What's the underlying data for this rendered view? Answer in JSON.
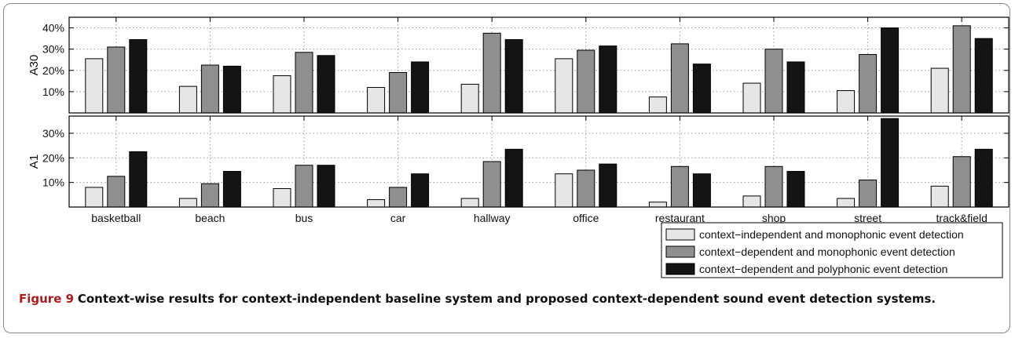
{
  "chart_data": [
    {
      "type": "bar",
      "ylabel": "A30",
      "ylim": [
        0,
        45
      ],
      "yticks": [
        10,
        20,
        30,
        40
      ],
      "ytick_labels": [
        "10%",
        "20%",
        "30%",
        "40%"
      ],
      "grid": true,
      "categories": [
        "basketball",
        "beach",
        "bus",
        "car",
        "hallway",
        "office",
        "restaurant",
        "shop",
        "street",
        "track&field"
      ],
      "series": [
        {
          "name": "context−independent and monophonic event detection",
          "color": "#e6e6e6",
          "values": [
            25.5,
            12.5,
            17.5,
            12,
            13.5,
            25.5,
            7.5,
            14,
            10.5,
            21
          ]
        },
        {
          "name": "context−dependent and monophonic event detection",
          "color": "#8f8f8f",
          "values": [
            31,
            22.5,
            28.5,
            19,
            37.5,
            29.5,
            32.5,
            30,
            27.5,
            41
          ]
        },
        {
          "name": "context−dependent and polyphonic event detection",
          "color": "#141414",
          "values": [
            34.5,
            22,
            27,
            24,
            34.5,
            31.5,
            23,
            24,
            40,
            35
          ]
        }
      ]
    },
    {
      "type": "bar",
      "ylabel": "A1",
      "ylim": [
        0,
        37
      ],
      "yticks": [
        10,
        20,
        30
      ],
      "ytick_labels": [
        "10%",
        "20%",
        "30%"
      ],
      "grid": true,
      "categories": [
        "basketball",
        "beach",
        "bus",
        "car",
        "hallway",
        "office",
        "restaurant",
        "shop",
        "street",
        "track&field"
      ],
      "series": [
        {
          "name": "context−independent and monophonic event detection",
          "color": "#e6e6e6",
          "values": [
            8,
            3.5,
            7.5,
            3,
            3.5,
            13.5,
            2,
            4.5,
            3.5,
            8.5
          ]
        },
        {
          "name": "context−dependent and monophonic event detection",
          "color": "#8f8f8f",
          "values": [
            12.5,
            9.5,
            17,
            8,
            18.5,
            15,
            16.5,
            16.5,
            11,
            20.5
          ]
        },
        {
          "name": "context−dependent and polyphonic event detection",
          "color": "#141414",
          "values": [
            22.5,
            14.5,
            17,
            13.5,
            23.5,
            17.5,
            13.5,
            14.5,
            36,
            23.5
          ]
        }
      ]
    }
  ],
  "legend": {
    "placement": "bottom-right",
    "entries": [
      "context−independent and monophonic event detection",
      "context−dependent and monophonic event detection",
      "context−dependent and polyphonic event detection"
    ]
  },
  "caption": {
    "figure_label": "Figure 9",
    "text": "Context-wise results for context-independent baseline system and proposed context-dependent sound event detection systems."
  }
}
